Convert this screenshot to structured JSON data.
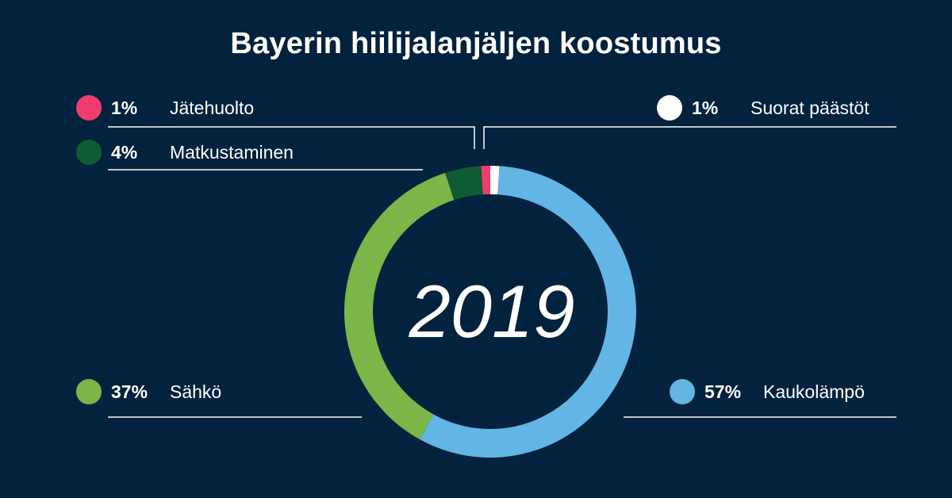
{
  "chart_data": {
    "type": "donut",
    "title": "Bayerin hiilijalanjäljen koostumus",
    "center_label": "2019",
    "unit": "%",
    "slices": [
      {
        "name": "Suorat päästöt",
        "value": 1,
        "label": "1%",
        "color": "#ffffff"
      },
      {
        "name": "Kaukolämpö",
        "value": 57,
        "label": "57%",
        "color": "#62b5e5"
      },
      {
        "name": "Sähkö",
        "value": 37,
        "label": "37%",
        "color": "#7ab648"
      },
      {
        "name": "Matkustaminen",
        "value": 4,
        "label": "4%",
        "color": "#0f5b34"
      },
      {
        "name": "Jätehuolto",
        "value": 1,
        "label": "1%",
        "color": "#ef3e6e"
      }
    ]
  }
}
